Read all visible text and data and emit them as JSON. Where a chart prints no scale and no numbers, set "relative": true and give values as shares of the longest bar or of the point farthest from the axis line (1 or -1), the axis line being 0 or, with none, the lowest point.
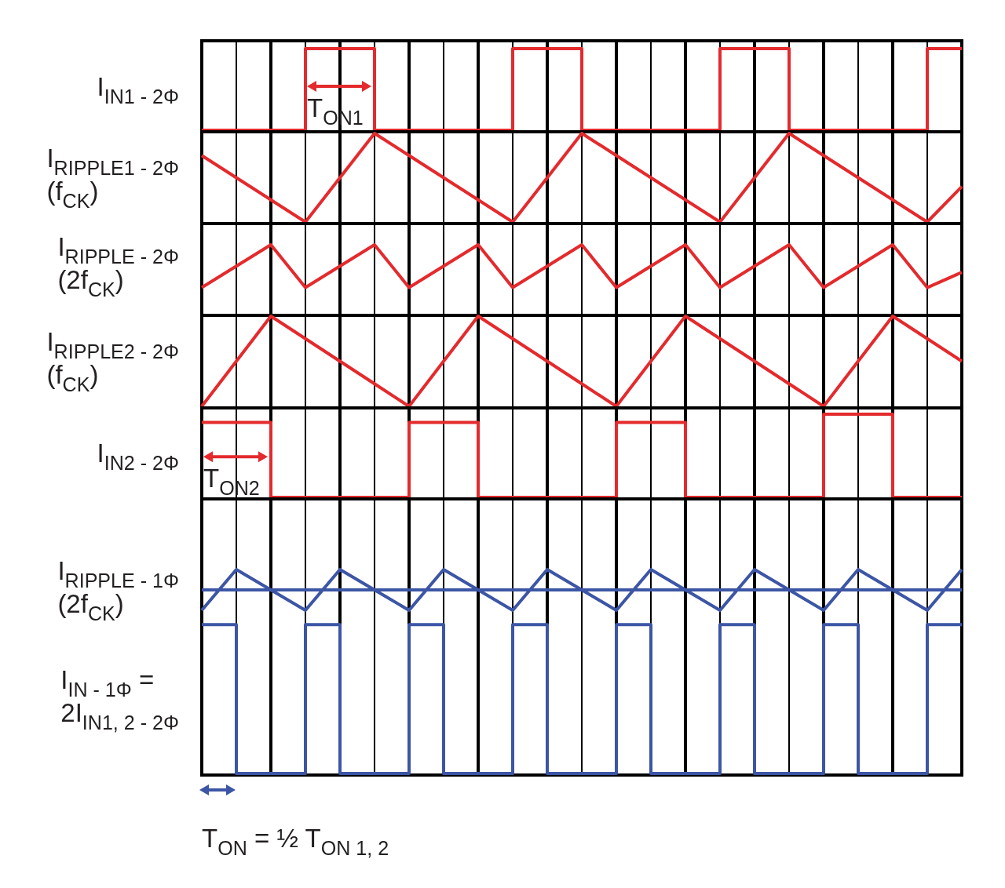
{
  "chart_data": [
    {
      "type": "step",
      "relative": true,
      "grid": "x",
      "categories": [
        null,
        null,
        null,
        null,
        null,
        null,
        null,
        null,
        null,
        null,
        null,
        null,
        null,
        null,
        null,
        null,
        null,
        null,
        null,
        null,
        null,
        null,
        null
      ],
      "series": [
        {
          "name": "I$_{IN1 - 2Φ}$",
          "color": "#e42a2d",
          "values": [
            0,
            0,
            0,
            1,
            1,
            0,
            0,
            0,
            0,
            1,
            1,
            0,
            0,
            0,
            0,
            1,
            1,
            0,
            0,
            0,
            0,
            1,
            1
          ]
        }
      ],
      "annotations": [
        "T$_{ON1}$"
      ]
    },
    {
      "type": "line",
      "relative": true,
      "grid": "x",
      "categories": [
        null,
        null,
        null,
        null,
        null,
        null,
        null,
        null,
        null,
        null,
        null,
        null,
        null,
        null,
        null,
        null,
        null,
        null,
        null,
        null,
        null,
        null,
        null
      ],
      "series": [
        {
          "name": "I$_{RIPPLE1 - 2Φ}$\n(f$_{CK}$)",
          "color": "#e42a2d",
          "values": [
            0.75,
            0.5,
            0.25,
            0,
            0.5,
            1,
            0.75,
            0.5,
            0.25,
            0,
            0.5,
            1,
            0.75,
            0.5,
            0.25,
            0,
            0.5,
            1,
            0.75,
            0.5,
            0.25,
            0,
            0.4
          ]
        }
      ]
    },
    {
      "type": "line",
      "relative": true,
      "grid": "x",
      "categories": [
        null,
        null,
        null,
        null,
        null,
        null,
        null,
        null,
        null,
        null,
        null,
        null,
        null,
        null,
        null,
        null,
        null,
        null,
        null,
        null,
        null,
        null,
        null
      ],
      "series": [
        {
          "name": "I$_{RIPPLE - 2Φ}$\n(2f$_{CK}$)",
          "color": "#e42a2d",
          "values": [
            0.38,
            0.69,
            1,
            0.38,
            0.69,
            1,
            0.38,
            0.69,
            1,
            0.38,
            0.69,
            1,
            0.38,
            0.69,
            1,
            0.38,
            0.69,
            1,
            0.38,
            0.69,
            1,
            0.38,
            0.6
          ]
        }
      ]
    },
    {
      "type": "line",
      "relative": true,
      "grid": "x",
      "categories": [
        null,
        null,
        null,
        null,
        null,
        null,
        null,
        null,
        null,
        null,
        null,
        null,
        null,
        null,
        null,
        null,
        null,
        null,
        null,
        null,
        null,
        null,
        null
      ],
      "series": [
        {
          "name": "I$_{RIPPLE2 - 2Φ}$\n(f$_{CK}$)",
          "color": "#e42a2d",
          "values": [
            0,
            0.5,
            1,
            0.75,
            0.5,
            0.25,
            0,
            0.5,
            1,
            0.75,
            0.5,
            0.25,
            0,
            0.5,
            1,
            0.75,
            0.5,
            0.25,
            0,
            0.5,
            1,
            0.75,
            0.5
          ]
        }
      ]
    },
    {
      "type": "step",
      "relative": true,
      "grid": "x",
      "categories": [
        null,
        null,
        null,
        null,
        null,
        null,
        null,
        null,
        null,
        null,
        null,
        null,
        null,
        null,
        null,
        null,
        null,
        null,
        null,
        null,
        null,
        null,
        null
      ],
      "series": [
        {
          "name": "I$_{IN2 - 2Φ}$",
          "color": "#e42a2d",
          "values": [
            0.9,
            0.9,
            0,
            0,
            0,
            0,
            0.9,
            0.9,
            0,
            0,
            0,
            0,
            0.9,
            0.9,
            0,
            0,
            0,
            0,
            1,
            1,
            0,
            0,
            0
          ]
        }
      ],
      "annotations": [
        "T$_{ON2}$"
      ]
    },
    {
      "type": "line",
      "relative": true,
      "grid": "x",
      "categories": [
        null,
        null,
        null,
        null,
        null,
        null,
        null,
        null,
        null,
        null,
        null,
        null,
        null,
        null,
        null,
        null,
        null,
        null,
        null,
        null,
        null,
        null,
        null
      ],
      "series": [
        {
          "name": "I$_{RIPPLE - 1Φ}$\n(2f$_{CK}$)",
          "color": "#3c55a5",
          "values": [
            0.8,
            1,
            0.9,
            0.8,
            1,
            0.9,
            0.8,
            1,
            0.9,
            0.8,
            1,
            0.9,
            0.8,
            1,
            0.9,
            0.8,
            1,
            0.9,
            0.8,
            1,
            0.9,
            0.8,
            1
          ]
        },
        {
          "type": "step",
          "name": "I$_{IN - 1Φ}$ =\n2I$_{IN1, 2 - 2Φ}$",
          "color": "#3c55a5",
          "values": [
            0.73,
            0,
            0,
            0.73,
            0,
            0,
            0.73,
            0,
            0,
            0.73,
            0,
            0,
            0.73,
            0,
            0,
            0.73,
            0,
            0,
            0.73,
            0,
            0,
            0.73,
            0.73
          ]
        }
      ],
      "ref_lines": [
        {
          "axis": "y",
          "value": 0.9,
          "color": "#3c55a5"
        }
      ],
      "annotations": [
        "T$_{ON}$ = ½ T$_{ON 1, 2}$"
      ]
    }
  ]
}
